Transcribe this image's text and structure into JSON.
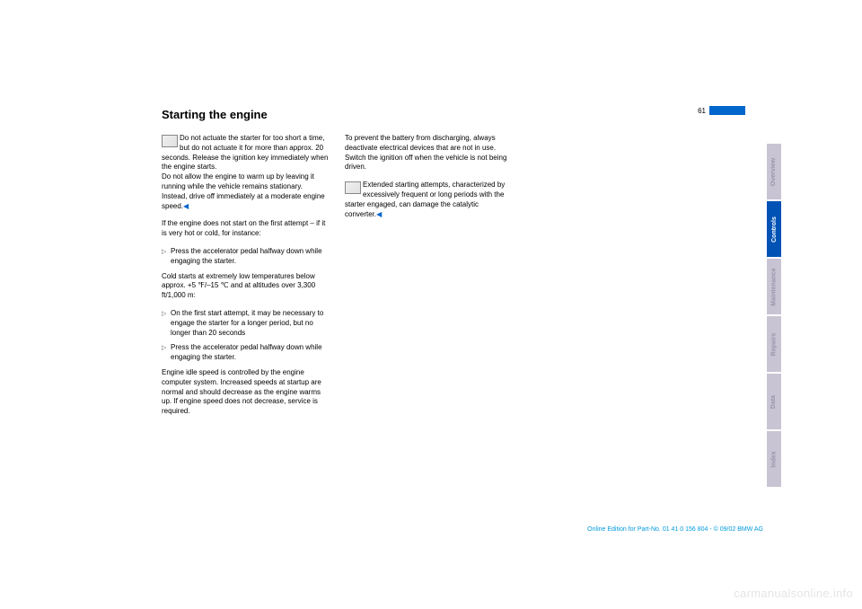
{
  "page": {
    "title": "Starting the engine",
    "number": "61"
  },
  "col1": {
    "note1": "Do not actuate the starter for too short a time, but do not actuate it for more than approx. 20 seconds. Release the ignition key immediately when the engine starts.",
    "note1b": "Do not allow the engine to warm up by leaving it running while the vehicle remains stationary. Instead, drive off immediately at a moderate engine speed.",
    "p2": "If the engine does not start on the first attempt – if it is very hot or cold, for instance:",
    "b1": "Press the accelerator pedal halfway down while engaging the starter.",
    "p3": "Cold starts at extremely low temperatures below approx. +5 ℉/–15 ℃ and at altitudes over 3,300 ft/1,000 m:",
    "b2": "On the first start attempt, it may be necessary to engage the starter for a longer period, but no longer than 20 seconds",
    "b3": "Press the accelerator pedal halfway down while engaging the starter.",
    "p4": "Engine idle speed is controlled by the engine computer system. Increased speeds at startup are normal and should decrease as the engine warms up. If engine speed does not decrease, service is required."
  },
  "col2": {
    "p1": "To prevent the battery from discharging, always deactivate electrical devices that are not in use. Switch the ignition off when the vehicle is not being driven.",
    "note2": "Extended starting attempts, characterized by excessively frequent or long periods with the starter engaged, can damage the catalytic converter."
  },
  "tabs": {
    "t1": "Overview",
    "t2": "Controls",
    "t3": "Maintenance",
    "t4": "Repairs",
    "t5": "Data",
    "t6": "Index"
  },
  "footer": "Online Edition for Part-No. 01 41 0 156 804 - © 09/02 BMW AG",
  "watermark": "carmanualsonline.info"
}
